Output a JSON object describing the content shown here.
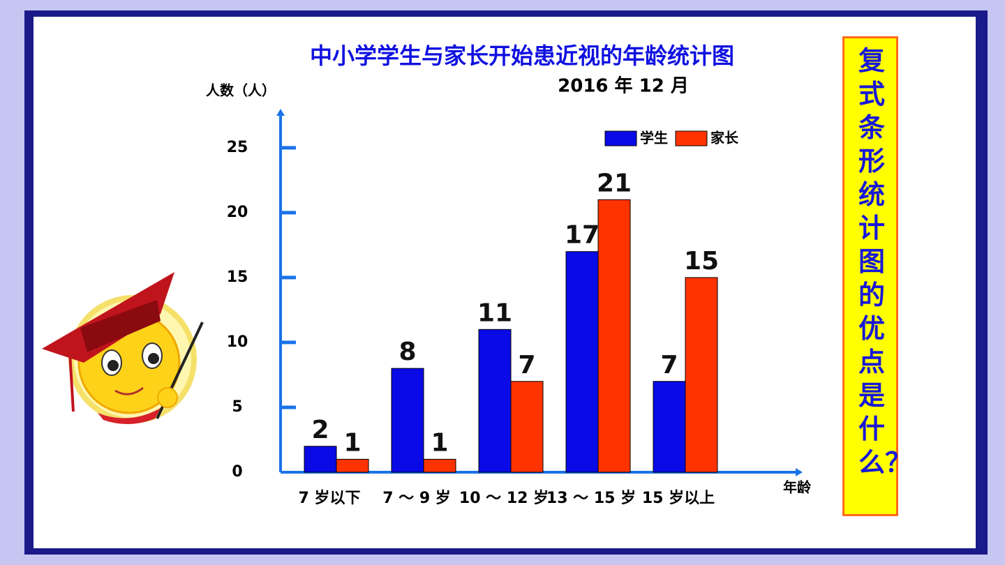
{
  "chart_data": {
    "type": "bar",
    "title": "中小学学生与家长开始患近视的年龄统计图",
    "subtitle": "2016 年 12 月",
    "y_label": "人数（人）",
    "x_label": "年龄",
    "categories": [
      "7 岁以下",
      "7 ～ 9 岁",
      "10 ～ 12 岁",
      "13 ～ 15 岁",
      "15 岁以上"
    ],
    "series": [
      {
        "name": "学生",
        "color": "#0a0ae6",
        "values": [
          2,
          8,
          11,
          17,
          7
        ]
      },
      {
        "name": "家长",
        "color": "#ff3300",
        "values": [
          1,
          1,
          7,
          21,
          15
        ]
      }
    ],
    "ylim": [
      0,
      28
    ],
    "yticks": [
      0,
      5,
      10,
      15,
      20,
      25
    ],
    "grid": false,
    "legend": "top-right"
  },
  "side_note": "复式条形统计图的优点是什么？"
}
